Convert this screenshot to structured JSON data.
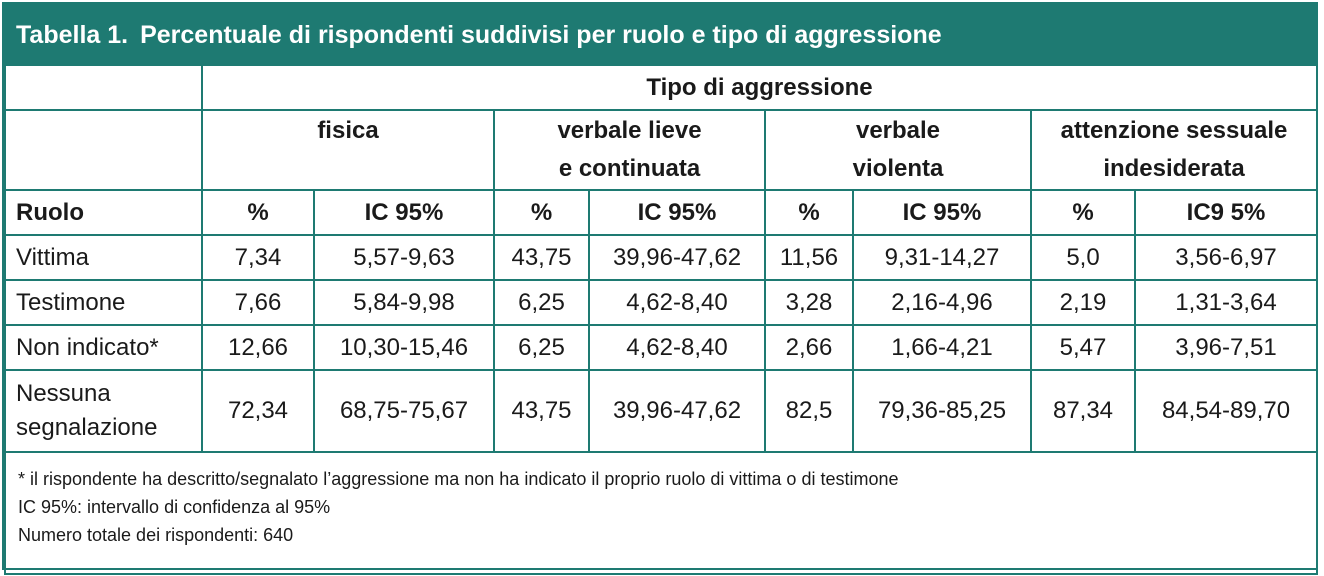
{
  "title": {
    "number": "Tabella 1.",
    "text": "Percentuale di rispondenti suddivisi per ruolo e tipo di aggressione"
  },
  "header": {
    "group": "Tipo di aggressione",
    "categories": [
      {
        "line1": "fisica",
        "line2": ""
      },
      {
        "line1": "verbale lieve",
        "line2": "e continuata"
      },
      {
        "line1": "verbale",
        "line2": "violenta"
      },
      {
        "line1": "attenzione sessuale",
        "line2": "indesiderata"
      }
    ],
    "ruolo": "Ruolo",
    "subcols": [
      "%",
      "IC 95%",
      "%",
      "IC 95%",
      "%",
      "IC 95%",
      "%",
      "IC9 5%"
    ]
  },
  "rows": [
    {
      "label": "Vittima",
      "label2": "",
      "values": [
        "7,34",
        "5,57-9,63",
        "43,75",
        "39,96-47,62",
        "11,56",
        "9,31-14,27",
        "5,0",
        "3,56-6,97"
      ]
    },
    {
      "label": "Testimone",
      "label2": "",
      "values": [
        "7,66",
        "5,84-9,98",
        "6,25",
        "4,62-8,40",
        "3,28",
        "2,16-4,96",
        "2,19",
        "1,31-3,64"
      ]
    },
    {
      "label": "Non indicato*",
      "label2": "",
      "values": [
        "12,66",
        "10,30-15,46",
        "6,25",
        "4,62-8,40",
        "2,66",
        "1,66-4,21",
        "5,47",
        "3,96-7,51"
      ]
    },
    {
      "label": "Nessuna",
      "label2": "segnalazione",
      "values": [
        "72,34",
        "68,75-75,67",
        "43,75",
        "39,96-47,62",
        "82,5",
        "79,36-85,25",
        "87,34",
        "84,54-89,70"
      ]
    }
  ],
  "notes": [
    "* il rispondente ha descritto/segnalato l’aggressione ma non ha indicato il proprio ruolo di vittima o di testimone",
    "IC 95%: intervallo di confidenza al 95%",
    "Numero totale dei rispondenti: 640"
  ],
  "colors": {
    "accent": "#1e7a72"
  }
}
